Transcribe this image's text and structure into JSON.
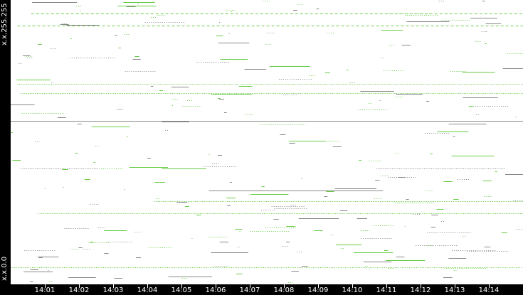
{
  "chart_data": {
    "type": "scatter",
    "title": "",
    "xlabel": "",
    "ylabel": "",
    "y_tick_labels": {
      "top": "x.x.255.255",
      "bottom": "x.x.0.0"
    },
    "x_tick_labels": [
      "14:01",
      "14:02",
      "14:03",
      "14:04",
      "14:05",
      "14:06",
      "14:07",
      "14:08",
      "14:09",
      "14:10",
      "14:11",
      "14:12",
      "14:13",
      "14:14"
    ],
    "xlim": [
      "14:00",
      "14:15"
    ],
    "ylim_address": [
      0,
      65535
    ],
    "grid": false,
    "colors": {
      "inbound": "#66cc44",
      "outbound": "#888888",
      "background": "#ffffff",
      "axis": "#000000"
    },
    "major_flows": [
      {
        "address": 62422,
        "start_min": 0.6,
        "end_min": 15,
        "color": "inbound",
        "style": "dashed"
      },
      {
        "address": 59637,
        "start_min": 0.2,
        "end_min": 15,
        "color": "inbound",
        "style": "dashed"
      },
      {
        "address": 46202,
        "start_min": 0.2,
        "end_min": 15,
        "color": "inbound",
        "style": "dotted"
      },
      {
        "address": 44072,
        "start_min": 0.3,
        "end_min": 15,
        "color": "inbound",
        "style": "dotted"
      },
      {
        "address": 41450,
        "start_min": 0.0,
        "end_min": 0.7,
        "color": "outbound",
        "style": "solid"
      },
      {
        "address": 37683,
        "start_min": 0.0,
        "end_min": 15,
        "color": "outbound",
        "style": "solid"
      },
      {
        "address": 26706,
        "start_min": 0.3,
        "end_min": 2.6,
        "color": "outbound",
        "style": "dotted"
      },
      {
        "address": 26706,
        "start_min": 10.7,
        "end_min": 14.5,
        "color": "outbound",
        "style": "dotted"
      },
      {
        "address": 21627,
        "start_min": 5.8,
        "end_min": 10.9,
        "color": "outbound",
        "style": "solid"
      },
      {
        "address": 19169,
        "start_min": 4.2,
        "end_min": 15,
        "color": "inbound",
        "style": "dotted"
      },
      {
        "address": 16384,
        "start_min": 0.8,
        "end_min": 15,
        "color": "inbound",
        "style": "dotted"
      },
      {
        "address": 3932,
        "start_min": 0.0,
        "end_min": 15,
        "color": "inbound",
        "style": "dotted"
      }
    ]
  }
}
